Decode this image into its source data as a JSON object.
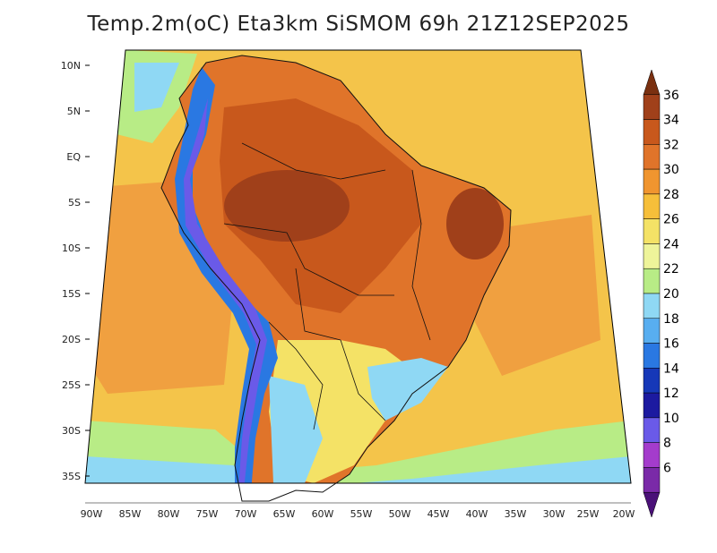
{
  "title": "Temp.2m(oC) Eta3km SiSMOM 69h 21Z12SEP2025",
  "lat_labels": [
    "10N",
    "5N",
    "EQ",
    "5S",
    "10S",
    "15S",
    "20S",
    "25S",
    "30S",
    "35S"
  ],
  "lon_labels": [
    "90W",
    "85W",
    "80W",
    "75W",
    "70W",
    "65W",
    "60W",
    "55W",
    "50W",
    "45W",
    "40W",
    "35W",
    "30W",
    "25W",
    "20W"
  ],
  "colorbar": {
    "labels": [
      "36",
      "34",
      "32",
      "30",
      "28",
      "26",
      "24",
      "22",
      "20",
      "18",
      "16",
      "14",
      "12",
      "10",
      "8",
      "6"
    ],
    "colors": [
      "#7a3010",
      "#a0401a",
      "#c8581c",
      "#e0742a",
      "#f0952f",
      "#f6bf3a",
      "#f4e266",
      "#eef49a",
      "#b8ec86",
      "#8fd8f4",
      "#58aef0",
      "#2a78e2",
      "#1638b8",
      "#1c1aa0",
      "#6a5ae8",
      "#a43ccc",
      "#7a2aa8",
      "#4a1078"
    ]
  }
}
